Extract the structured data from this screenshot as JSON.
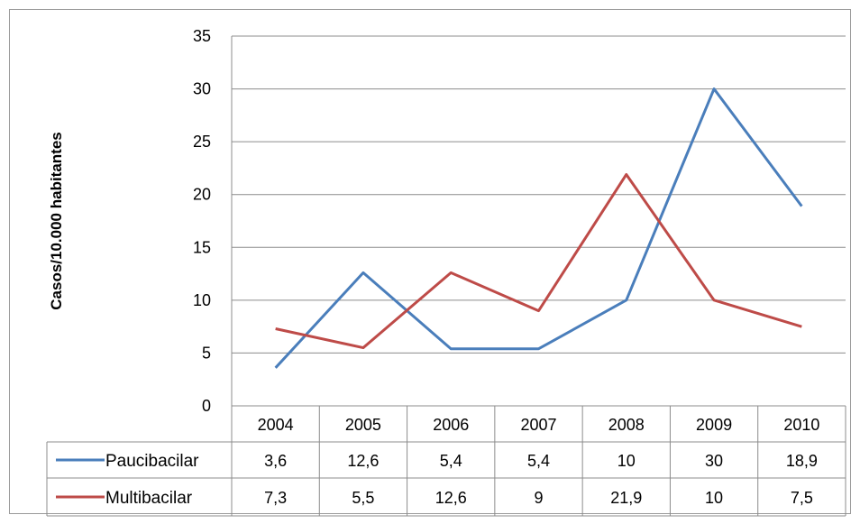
{
  "chart_data": {
    "type": "line",
    "title": "",
    "xlabel": "",
    "ylabel": "Casos/10.000 habitantes",
    "ylim": [
      0,
      35
    ],
    "yticks": [
      "0",
      "5",
      "10",
      "15",
      "20",
      "25",
      "30",
      "35"
    ],
    "grid": true,
    "legend": "data-table-left",
    "categories": [
      "2004",
      "2005",
      "2006",
      "2007",
      "2008",
      "2009",
      "2010"
    ],
    "series": [
      {
        "name": "Paucibacilar",
        "color": "#4a7ebb",
        "values": [
          3.6,
          12.6,
          5.4,
          5.4,
          10,
          30,
          18.9
        ],
        "labels": [
          "3,6",
          "12,6",
          "5,4",
          "5,4",
          "10",
          "30",
          "18,9"
        ]
      },
      {
        "name": "Multibacilar",
        "color": "#be4b48",
        "values": [
          7.3,
          5.5,
          12.6,
          9,
          21.9,
          10,
          7.5
        ],
        "labels": [
          "7,3",
          "5,5",
          "12,6",
          "9",
          "21,9",
          "10",
          "7,5"
        ]
      }
    ]
  }
}
